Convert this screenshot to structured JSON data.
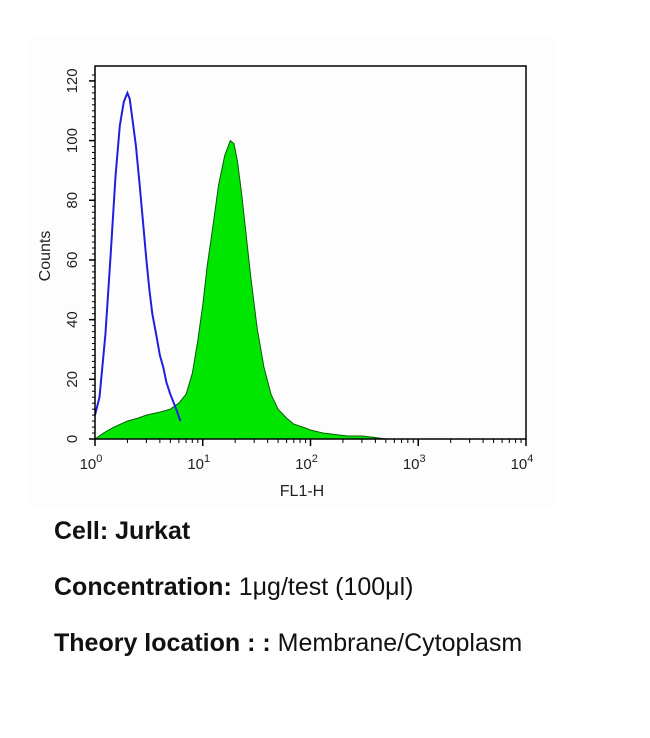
{
  "chart_data": {
    "type": "histogram-overlay",
    "title": "",
    "xlabel": "FL1-H",
    "ylabel": "Counts",
    "x_scale": "log",
    "xlim": [
      1,
      10000
    ],
    "ylim": [
      0,
      125
    ],
    "y_ticks": [
      "0",
      "20",
      "40",
      "60",
      "80",
      "100",
      "120"
    ],
    "x_ticks": [
      {
        "base": "10",
        "exp": "0"
      },
      {
        "base": "10",
        "exp": "1"
      },
      {
        "base": "10",
        "exp": "2"
      },
      {
        "base": "10",
        "exp": "3"
      },
      {
        "base": "10",
        "exp": "4"
      }
    ],
    "series": [
      {
        "style": "outline",
        "color": "#1f1fe0",
        "x": [
          1.0,
          1.1,
          1.25,
          1.4,
          1.55,
          1.7,
          1.85,
          2.0,
          2.1,
          2.25,
          2.4,
          2.6,
          2.8,
          3.0,
          3.2,
          3.4,
          3.7,
          4.0,
          4.3,
          4.6,
          5.0,
          5.4,
          5.8,
          6.2
        ],
        "y": [
          8,
          14,
          35,
          62,
          88,
          105,
          113,
          116,
          114,
          106,
          98,
          85,
          72,
          60,
          50,
          42,
          35,
          28,
          24,
          19,
          15,
          12,
          9,
          6
        ]
      },
      {
        "style": "filled",
        "color": "#00e600",
        "x": [
          1.0,
          1.2,
          1.5,
          2.0,
          2.5,
          3.0,
          4.0,
          5.0,
          6.0,
          7.0,
          8.0,
          9.0,
          10.0,
          11.0,
          12.5,
          14.0,
          16.0,
          18.0,
          19.5,
          21.0,
          23.0,
          25.0,
          28.0,
          32.0,
          37.0,
          43.0,
          50.0,
          60.0,
          70.0,
          85.0,
          100.0,
          130.0,
          170.0,
          220.0,
          300.0,
          400.0,
          500.0
        ],
        "y": [
          0,
          2,
          4,
          6,
          7,
          8,
          9,
          10,
          12,
          15,
          22,
          33,
          45,
          58,
          72,
          85,
          95,
          100,
          99,
          93,
          82,
          70,
          54,
          37,
          24,
          15,
          10,
          7,
          5,
          4,
          3,
          2,
          1.5,
          1,
          1,
          0.5,
          0
        ]
      }
    ]
  },
  "caption": {
    "cell_label": "Cell:",
    "cell_value": "Jurkat",
    "conc_label": "Concentration:",
    "conc_value": "1μg/test (100μl)",
    "loc_label": "Theory location : :",
    "loc_value": "Membrane/Cytoplasm"
  }
}
